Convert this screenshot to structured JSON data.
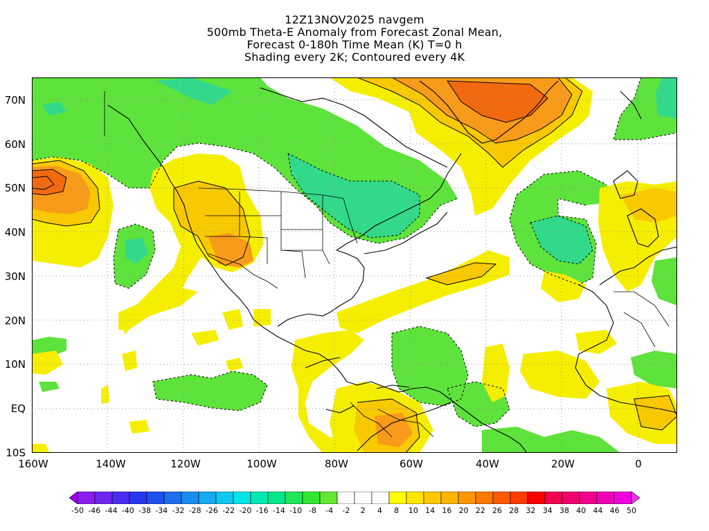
{
  "title": {
    "line1": "12Z13NOV2025 navgem",
    "line2": "500mb Theta-E Anomaly from Forecast Zonal Mean,",
    "line3": "Forecast 0-180h Time Mean (K) T=0 h",
    "line4": "Shading every 2K; Contoured every 4K"
  },
  "latitude_labels": [
    "70N",
    "60N",
    "50N",
    "40N",
    "30N",
    "20N",
    "10N",
    "EQ",
    "10S"
  ],
  "longitude_labels": [
    "160W",
    "140W",
    "120W",
    "100W",
    "80W",
    "60W",
    "40W",
    "20W",
    "0"
  ],
  "colorbar": {
    "labels": [
      "-50",
      "-46",
      "-44",
      "-40",
      "-38",
      "-34",
      "-32",
      "-28",
      "-26",
      "-22",
      "-20",
      "-16",
      "-14",
      "-10",
      "-8",
      "-4",
      "-2",
      "2",
      "4",
      "8",
      "10",
      "14",
      "16",
      "20",
      "22",
      "26",
      "28",
      "32",
      "34",
      "38",
      "40",
      "44",
      "46",
      "50"
    ],
    "colors": [
      "#a000f0",
      "#8a1cf0",
      "#6e28f0",
      "#4b2cf0",
      "#2836ee",
      "#1e50f0",
      "#1e6ef0",
      "#1a8cf0",
      "#16aaf0",
      "#10c8f0",
      "#00e6e6",
      "#00e8b4",
      "#00e68c",
      "#20e65a",
      "#32e632",
      "#64e632",
      "#ffffff",
      "#ffffff",
      "#ffffff",
      "#ffff00",
      "#ffe600",
      "#ffc800",
      "#ffb400",
      "#ff9600",
      "#ff7800",
      "#ff5a00",
      "#ff3c00",
      "#ff0000",
      "#f00050",
      "#f0006e",
      "#f0008c",
      "#f000b4",
      "#f000dc",
      "#f030f0"
    ]
  },
  "colors": {
    "green": "#5ee23c",
    "green_dark": "#33d98a",
    "yellow": "#f6ee00",
    "gold": "#f8c800",
    "orange": "#f89a1a",
    "orange_dark": "#f26a10",
    "land_outline": "#000000",
    "grid": "#8c8c8c"
  }
}
